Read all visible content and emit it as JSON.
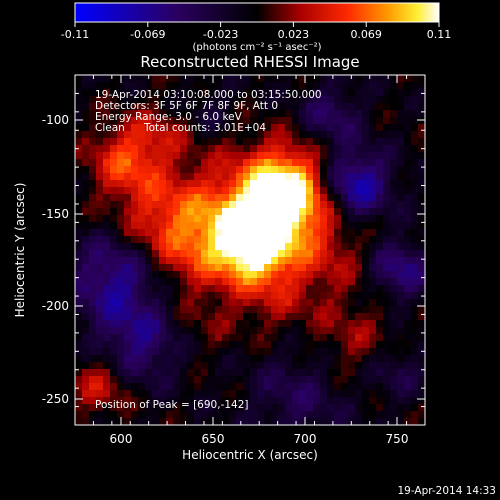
{
  "colorbar": {
    "tick_labels": [
      "-0.11",
      "-0.069",
      "-0.023",
      "0.023",
      "0.069",
      "0.11"
    ],
    "units": "(photons cm⁻² s⁻¹ asec⁻²)"
  },
  "figure": {
    "title": "Reconstructed RHESSI Image",
    "xlabel": "Heliocentric X (arcsec)",
    "ylabel": "Heliocentric Y (arcsec)",
    "x_ticks": [
      "600",
      "650",
      "700",
      "750"
    ],
    "y_ticks": [
      "-100",
      "-150",
      "-200",
      "-250"
    ],
    "xlim": [
      575,
      765
    ],
    "ylim": [
      -268,
      -70
    ]
  },
  "annotations": {
    "line1": "19-Apr-2014 03:10:08.000 to 03:15:50.000",
    "line2": "Detectors: 3F 5F 6F 7F 8F 9F, Att 0",
    "line3": "Energy Range: 3.0 - 6.0 keV",
    "line4_left": "Clean",
    "line4_right": "Total counts: 3.01E+04",
    "peak": "Position of Peak = [690,-142]"
  },
  "footer": {
    "timestamp": "19-Apr-2014 14:33"
  },
  "colors": {
    "background": "#000000",
    "text": "#ffffff",
    "colormap": [
      "#0000ff",
      "#000000",
      "#ff0000",
      "#ffa500",
      "#ffff00",
      "#ffffff"
    ]
  }
}
